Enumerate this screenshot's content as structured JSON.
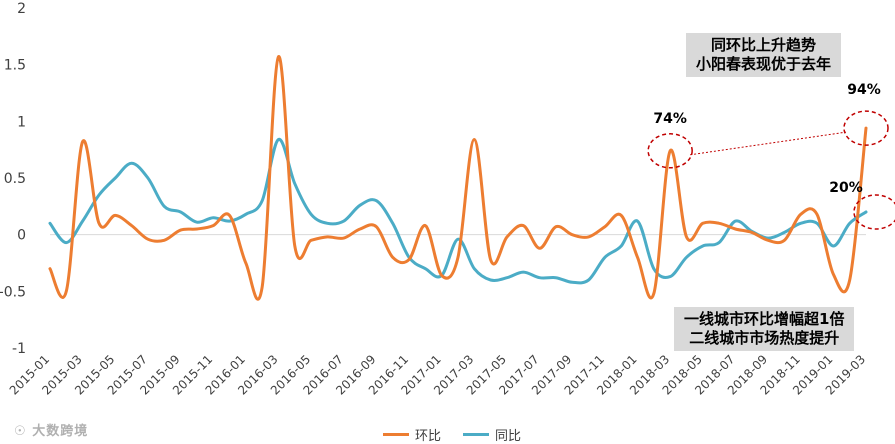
{
  "chart_data": {
    "type": "line",
    "ylim": [
      -1,
      2
    ],
    "yticks": [
      "2",
      "1.5",
      "1",
      "0.5",
      "0",
      "-0.5",
      "-1"
    ],
    "ytick_values": [
      2,
      1.5,
      1,
      0.5,
      0,
      -0.5,
      -1
    ],
    "x": [
      "2015-01",
      "2015-02",
      "2015-03",
      "2015-04",
      "2015-05",
      "2015-06",
      "2015-07",
      "2015-08",
      "2015-09",
      "2015-10",
      "2015-11",
      "2015-12",
      "2016-01",
      "2016-02",
      "2016-03",
      "2016-04",
      "2016-05",
      "2016-06",
      "2016-07",
      "2016-08",
      "2016-09",
      "2016-10",
      "2016-11",
      "2016-12",
      "2017-01",
      "2017-02",
      "2017-03",
      "2017-04",
      "2017-05",
      "2017-06",
      "2017-07",
      "2017-08",
      "2017-09",
      "2017-10",
      "2017-11",
      "2017-12",
      "2018-01",
      "2018-02",
      "2018-03",
      "2018-04",
      "2018-05",
      "2018-06",
      "2018-07",
      "2018-08",
      "2018-09",
      "2018-10",
      "2018-11",
      "2018-12",
      "2019-01",
      "2019-02",
      "2019-03"
    ],
    "xtick_labels": [
      "2015-01",
      "2015-03",
      "2015-05",
      "2015-07",
      "2015-09",
      "2015-11",
      "2016-01",
      "2016-03",
      "2016-05",
      "2016-07",
      "2016-09",
      "2016-11",
      "2017-01",
      "2017-03",
      "2017-05",
      "2017-07",
      "2017-09",
      "2017-11",
      "2018-01",
      "2018-03",
      "2018-05",
      "2018-07",
      "2018-09",
      "2018-11",
      "2019-01",
      "2019-03"
    ],
    "series": [
      {
        "name": "环比",
        "color": "#ED7D31",
        "values": [
          -0.3,
          -0.5,
          0.82,
          0.1,
          0.17,
          0.08,
          -0.04,
          -0.05,
          0.04,
          0.05,
          0.08,
          0.17,
          -0.25,
          -0.46,
          1.57,
          -0.1,
          -0.05,
          -0.02,
          -0.03,
          0.05,
          0.07,
          -0.2,
          -0.22,
          0.08,
          -0.36,
          -0.2,
          0.84,
          -0.22,
          -0.02,
          0.08,
          -0.12,
          0.07,
          0.0,
          -0.02,
          0.07,
          0.17,
          -0.2,
          -0.52,
          0.74,
          -0.02,
          0.1,
          0.1,
          0.05,
          0.02,
          -0.05,
          -0.05,
          0.18,
          0.18,
          -0.35,
          -0.4,
          0.94
        ]
      },
      {
        "name": "同比",
        "color": "#4BACC6",
        "values": [
          0.1,
          -0.07,
          0.12,
          0.35,
          0.5,
          0.63,
          0.5,
          0.25,
          0.2,
          0.11,
          0.15,
          0.12,
          0.18,
          0.3,
          0.84,
          0.45,
          0.18,
          0.1,
          0.12,
          0.26,
          0.3,
          0.1,
          -0.2,
          -0.3,
          -0.36,
          -0.04,
          -0.3,
          -0.4,
          -0.38,
          -0.33,
          -0.38,
          -0.38,
          -0.42,
          -0.4,
          -0.2,
          -0.1,
          0.12,
          -0.3,
          -0.37,
          -0.2,
          -0.1,
          -0.07,
          0.12,
          0.03,
          -0.03,
          0.02,
          0.1,
          0.1,
          -0.1,
          0.1,
          0.2
        ]
      }
    ],
    "annotations": [
      {
        "label": "74%",
        "x_index": 38,
        "value": 0.74
      },
      {
        "label": "94%",
        "x_index": 50,
        "value": 0.94
      },
      {
        "label": "20%",
        "x_index": 50,
        "value": 0.2
      }
    ]
  },
  "notes": {
    "top": [
      "同环比上升趋势",
      "小阳春表现优于去年"
    ],
    "bottom": [
      "一线城市环比增幅超1倍",
      "二线城市市场热度提升"
    ]
  },
  "legend": [
    {
      "label": "环比",
      "color": "#ED7D31"
    },
    {
      "label": "同比",
      "color": "#4BACC6"
    }
  ],
  "watermark": "大数跨境"
}
